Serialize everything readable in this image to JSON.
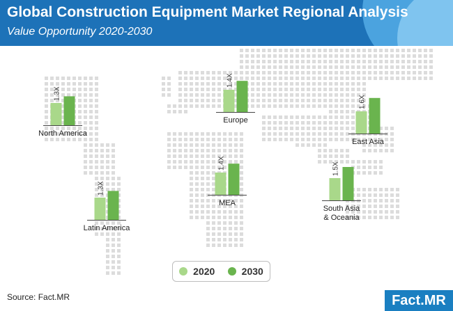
{
  "header": {
    "title": "Global Construction Equipment Market Regional Analysis",
    "subtitle": "Value Opportunity 2020-2030"
  },
  "colors": {
    "header_bg": "#1d72b8",
    "series_2020": "#a9d88a",
    "series_2030": "#6ab44e",
    "map_dots": "#dcdcdc"
  },
  "chart_data": {
    "type": "bar",
    "series": [
      {
        "name": "2020",
        "color": "#a9d88a"
      },
      {
        "name": "2030",
        "color": "#6ab44e"
      }
    ],
    "regions": [
      {
        "name": "North America",
        "label": "1.3X",
        "values": [
          1.0,
          1.3
        ]
      },
      {
        "name": "Europe",
        "label": "1.4X",
        "values": [
          1.0,
          1.4
        ]
      },
      {
        "name": "East Asia",
        "label": "1.6X",
        "values": [
          1.0,
          1.6
        ]
      },
      {
        "name": "MEA",
        "label": "1.4X",
        "values": [
          1.0,
          1.4
        ]
      },
      {
        "name": "Latin America",
        "label": "1.3X",
        "values": [
          1.0,
          1.3
        ]
      },
      {
        "name": "South Asia & Oceania",
        "name_lines": [
          "South Asia",
          "& Oceania"
        ],
        "label": "1.5X",
        "values": [
          1.0,
          1.5
        ]
      }
    ]
  },
  "legend": {
    "items": [
      "2020",
      "2030"
    ]
  },
  "footer": {
    "source": "Source: Fact.MR",
    "logo_text": "Fact.MR"
  }
}
